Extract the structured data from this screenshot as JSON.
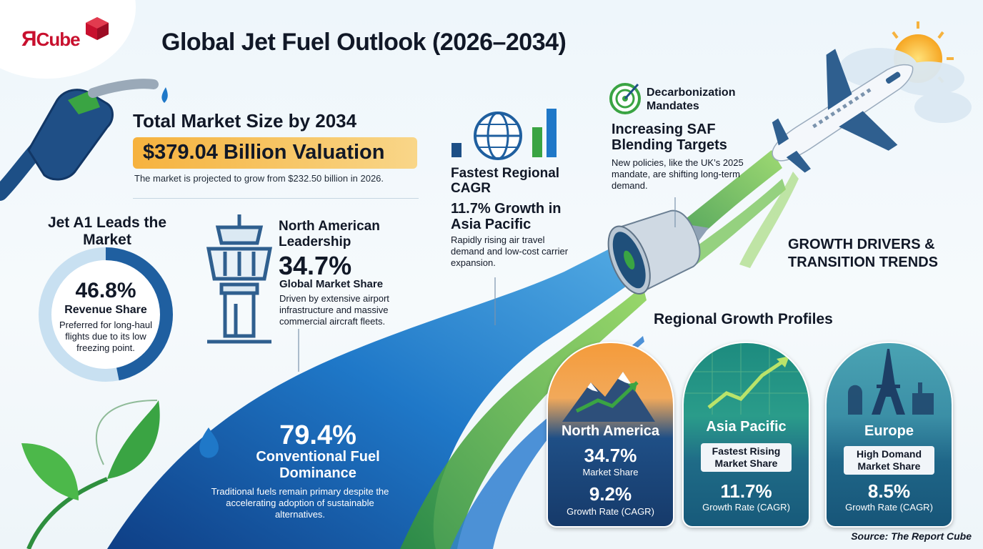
{
  "brand": {
    "logo_r": "Я",
    "logo_rest": "Cube"
  },
  "title": "Global Jet Fuel Outlook (2026–2034)",
  "total_market": {
    "heading": "Total Market Size by 2034",
    "value": "$379.04 Billion Valuation",
    "description": "The market is projected to grow from $232.50 billion in 2026."
  },
  "jet_a1": {
    "heading": "Jet A1 Leads the Market",
    "share_value": "46.8%",
    "share_fraction": 0.468,
    "share_label": "Revenue Share",
    "description": "Preferred for long-haul flights due to its low freezing point."
  },
  "north_american": {
    "heading": "North American Leadership",
    "value": "34.7%",
    "label": "Global Market Share",
    "description": "Driven by extensive airport infrastructure and massive commercial aircraft fleets."
  },
  "fastest_regional": {
    "heading": "Fastest Regional CAGR",
    "growth": "11.7% Growth in Asia Pacific",
    "description": "Rapidly rising air travel demand and low-cost carrier expansion."
  },
  "decarbonization": {
    "label": "Decarbonization Mandates",
    "heading": "Increasing SAF Blending Targets",
    "description": "New policies, like the UK’s 2025 mandate, are shifting long-term demand."
  },
  "growth_drivers": "GROWTH DRIVERS & TRANSITION TRENDS",
  "conventional": {
    "value": "79.4%",
    "label": "Conventional Fuel Dominance",
    "description": "Traditional fuels remain primary despite the accelerating adoption of sustainable alternatives."
  },
  "regional": {
    "heading": "Regional Growth Profiles",
    "cards": [
      {
        "name": "North America",
        "share": "34.7%",
        "share_label": "Market Share",
        "growth": "9.2%",
        "growth_label": "Growth Rate (CAGR)"
      },
      {
        "name": "Asia Pacific",
        "chip": "Fastest Rising Market Share",
        "growth": "11.7%",
        "growth_label": "Growth Rate (CAGR)"
      },
      {
        "name": "Europe",
        "chip": "High Domand Market Share",
        "growth": "8.5%",
        "growth_label": "Growth Rate (CAGR)"
      }
    ]
  },
  "source": "Source: The Report Cube",
  "colors": {
    "accent_orange": "#f6b23e",
    "wave_blue": "#1f6fc0",
    "leaf_green": "#3aa443",
    "navy": "#163a6a"
  }
}
